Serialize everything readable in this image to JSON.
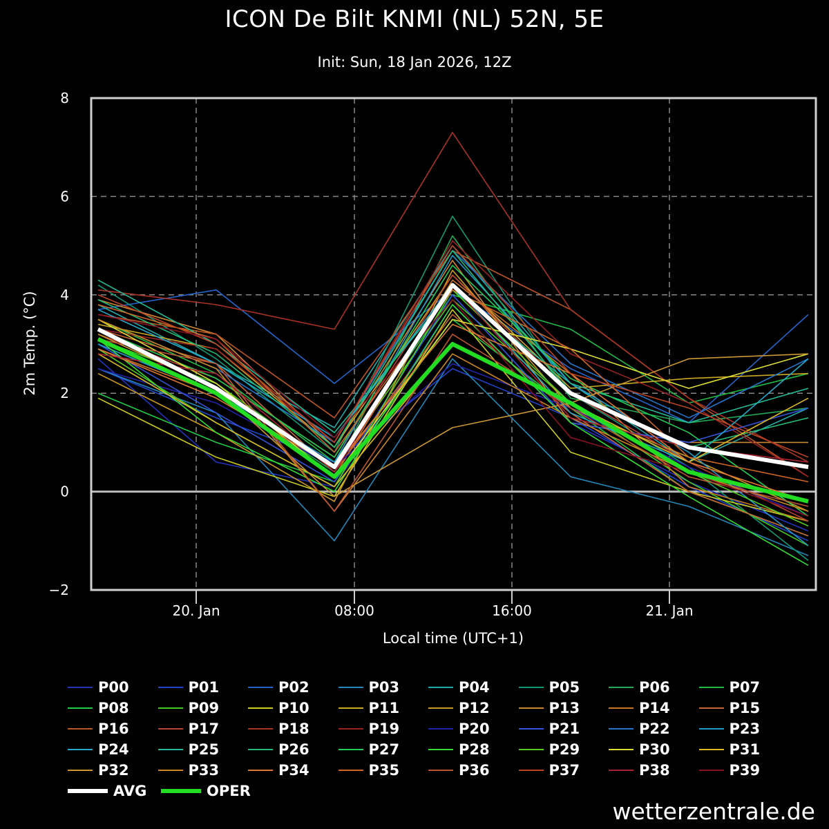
{
  "chart_data": {
    "type": "line",
    "title": "ICON De Bilt KNMI (NL) 52N, 5E",
    "subtitle": "Init: Sun, 18 Jan 2026, 12Z",
    "xlabel": "Local time (UTC+1)",
    "ylabel": "2m Temp. (°C)",
    "ylim": [
      -2,
      8
    ],
    "yticks": [
      "8",
      "6",
      "4",
      "2",
      "0",
      "−2"
    ],
    "x": [
      "19. Jan 13:00",
      "20. Jan 01:00",
      "20. Jan 07:00",
      "20. Jan 13:00",
      "20. Jan 19:00",
      "21. Jan 01:00",
      "21. Jan 07:00"
    ],
    "xticks": [
      "20. Jan",
      "08:00",
      "16:00",
      "21. Jan"
    ],
    "grid": true,
    "legend_position": "bottom",
    "series": [
      {
        "name": "P00",
        "color": "#2233bb",
        "values": [
          2.7,
          0.6,
          0.1,
          3.8,
          1.4,
          0.2,
          -0.8
        ]
      },
      {
        "name": "P01",
        "color": "#2244cc",
        "values": [
          2.5,
          1.5,
          0.6,
          2.5,
          1.5,
          0.1,
          -1.0
        ]
      },
      {
        "name": "P02",
        "color": "#2266cc",
        "values": [
          3.7,
          4.1,
          2.2,
          4.1,
          2.5,
          1.4,
          3.6
        ]
      },
      {
        "name": "P03",
        "color": "#2288bb",
        "values": [
          2.5,
          1.6,
          -1.0,
          2.7,
          0.3,
          -0.3,
          -1.3
        ]
      },
      {
        "name": "P04",
        "color": "#22aaaa",
        "values": [
          3.8,
          2.6,
          1.3,
          5.0,
          2.2,
          0.6,
          1.7
        ]
      },
      {
        "name": "P05",
        "color": "#119977",
        "values": [
          4.2,
          2.7,
          0.8,
          5.6,
          2.0,
          0.5,
          -1.4
        ]
      },
      {
        "name": "P06",
        "color": "#22aa55",
        "values": [
          3.0,
          2.0,
          0.4,
          5.2,
          1.9,
          1.4,
          1.7
        ]
      },
      {
        "name": "P07",
        "color": "#22bb44",
        "values": [
          3.5,
          2.4,
          0.6,
          4.0,
          3.3,
          1.8,
          2.4
        ]
      },
      {
        "name": "P08",
        "color": "#22cc44",
        "values": [
          2.0,
          1.0,
          0.2,
          3.5,
          1.7,
          0.0,
          -0.9
        ]
      },
      {
        "name": "P09",
        "color": "#44cc22",
        "values": [
          3.1,
          2.2,
          0.5,
          3.9,
          1.8,
          0.2,
          -1.1
        ]
      },
      {
        "name": "P10",
        "color": "#cccc22",
        "values": [
          1.9,
          0.7,
          -0.1,
          3.7,
          0.8,
          0.0,
          -0.6
        ]
      },
      {
        "name": "P11",
        "color": "#ccaa22",
        "values": [
          3.4,
          2.9,
          0.9,
          4.4,
          2.1,
          2.3,
          2.4
        ]
      },
      {
        "name": "P12",
        "color": "#cc9922",
        "values": [
          2.4,
          1.2,
          -0.2,
          4.5,
          1.7,
          0.7,
          -0.4
        ]
      },
      {
        "name": "P13",
        "color": "#cc8833",
        "values": [
          3.9,
          3.2,
          0.9,
          4.7,
          1.4,
          1.0,
          1.0
        ]
      },
      {
        "name": "P14",
        "color": "#cc7722",
        "values": [
          2.9,
          2.0,
          0.3,
          4.3,
          2.4,
          0.1,
          -0.6
        ]
      },
      {
        "name": "P15",
        "color": "#cc6633",
        "values": [
          3.3,
          2.6,
          0.4,
          3.6,
          1.6,
          0.0,
          -0.9
        ]
      },
      {
        "name": "P16",
        "color": "#bb5522",
        "values": [
          3.6,
          3.2,
          1.5,
          4.9,
          3.7,
          1.9,
          0.3
        ]
      },
      {
        "name": "P17",
        "color": "#bb4433",
        "values": [
          3.2,
          2.3,
          0.7,
          4.4,
          2.0,
          0.6,
          -0.6
        ]
      },
      {
        "name": "P18",
        "color": "#aa3322",
        "values": [
          4.1,
          3.8,
          3.3,
          7.3,
          3.7,
          1.9,
          0.6
        ]
      },
      {
        "name": "P19",
        "color": "#992222",
        "values": [
          3.3,
          2.9,
          1.0,
          5.1,
          2.8,
          1.8,
          0.3
        ]
      },
      {
        "name": "P20",
        "color": "#2222aa",
        "values": [
          2.5,
          1.8,
          0.5,
          2.6,
          1.7,
          0.5,
          -0.5
        ]
      },
      {
        "name": "P21",
        "color": "#3355dd",
        "values": [
          3.0,
          1.6,
          0.2,
          4.0,
          1.4,
          1.0,
          1.7
        ]
      },
      {
        "name": "P22",
        "color": "#2277cc",
        "values": [
          3.5,
          2.5,
          1.0,
          4.9,
          2.6,
          1.5,
          2.7
        ]
      },
      {
        "name": "P23",
        "color": "#2299cc",
        "values": [
          3.0,
          2.0,
          0.6,
          4.8,
          2.2,
          0.8,
          -1.1
        ]
      },
      {
        "name": "P24",
        "color": "#22aacc",
        "values": [
          3.7,
          2.6,
          1.1,
          4.2,
          1.6,
          0.6,
          2.7
        ]
      },
      {
        "name": "P25",
        "color": "#22bb99",
        "values": [
          4.3,
          3.0,
          1.2,
          4.1,
          2.2,
          1.4,
          2.1
        ]
      },
      {
        "name": "P26",
        "color": "#22bb77",
        "values": [
          3.9,
          2.8,
          0.9,
          4.9,
          2.0,
          0.9,
          1.5
        ]
      },
      {
        "name": "P27",
        "color": "#22cc55",
        "values": [
          3.3,
          2.3,
          0.7,
          4.6,
          2.3,
          1.2,
          -0.5
        ]
      },
      {
        "name": "P28",
        "color": "#33dd33",
        "values": [
          3.1,
          1.2,
          0.0,
          3.8,
          1.4,
          -0.1,
          -1.5
        ]
      },
      {
        "name": "P29",
        "color": "#55cc22",
        "values": [
          2.9,
          1.4,
          0.1,
          4.1,
          1.8,
          0.4,
          -0.7
        ]
      },
      {
        "name": "P30",
        "color": "#dddd33",
        "values": [
          3.5,
          2.2,
          0.3,
          3.5,
          2.9,
          2.1,
          2.8
        ]
      },
      {
        "name": "P31",
        "color": "#ddbb22",
        "values": [
          2.8,
          1.4,
          0.1,
          3.0,
          1.8,
          0.6,
          1.9
        ]
      },
      {
        "name": "P32",
        "color": "#cc9933",
        "values": [
          3.2,
          2.1,
          -0.1,
          1.3,
          1.8,
          2.7,
          2.8
        ]
      },
      {
        "name": "P33",
        "color": "#cc8822",
        "values": [
          3.5,
          2.5,
          -0.4,
          2.8,
          1.5,
          0.4,
          -0.4
        ]
      },
      {
        "name": "P34",
        "color": "#dd7733",
        "values": [
          2.9,
          1.9,
          0.5,
          3.4,
          2.4,
          0.6,
          -0.2
        ]
      },
      {
        "name": "P35",
        "color": "#cc6622",
        "values": [
          3.8,
          3.1,
          0.8,
          4.1,
          2.9,
          0.7,
          0.2
        ]
      },
      {
        "name": "P36",
        "color": "#bb5533",
        "values": [
          3.1,
          2.6,
          -0.4,
          3.2,
          1.7,
          0.3,
          -0.3
        ]
      },
      {
        "name": "P37",
        "color": "#bb4422",
        "values": [
          4.0,
          3.0,
          1.0,
          5.0,
          2.4,
          1.7,
          0.7
        ]
      },
      {
        "name": "P38",
        "color": "#aa2233",
        "values": [
          2.8,
          2.4,
          0.4,
          4.2,
          1.5,
          0.9,
          0.6
        ]
      },
      {
        "name": "P39",
        "color": "#881122",
        "values": [
          3.6,
          3.1,
          1.1,
          3.9,
          1.1,
          0.4,
          -0.5
        ]
      },
      {
        "name": "AVG",
        "color": "#ffffff",
        "values": [
          3.3,
          2.1,
          0.5,
          4.2,
          2.0,
          0.9,
          0.5
        ]
      },
      {
        "name": "OPER",
        "color": "#22dd22",
        "values": [
          3.1,
          2.0,
          0.3,
          3.0,
          1.8,
          0.4,
          -0.2
        ]
      }
    ]
  },
  "watermark": "wetterzentrale.de"
}
